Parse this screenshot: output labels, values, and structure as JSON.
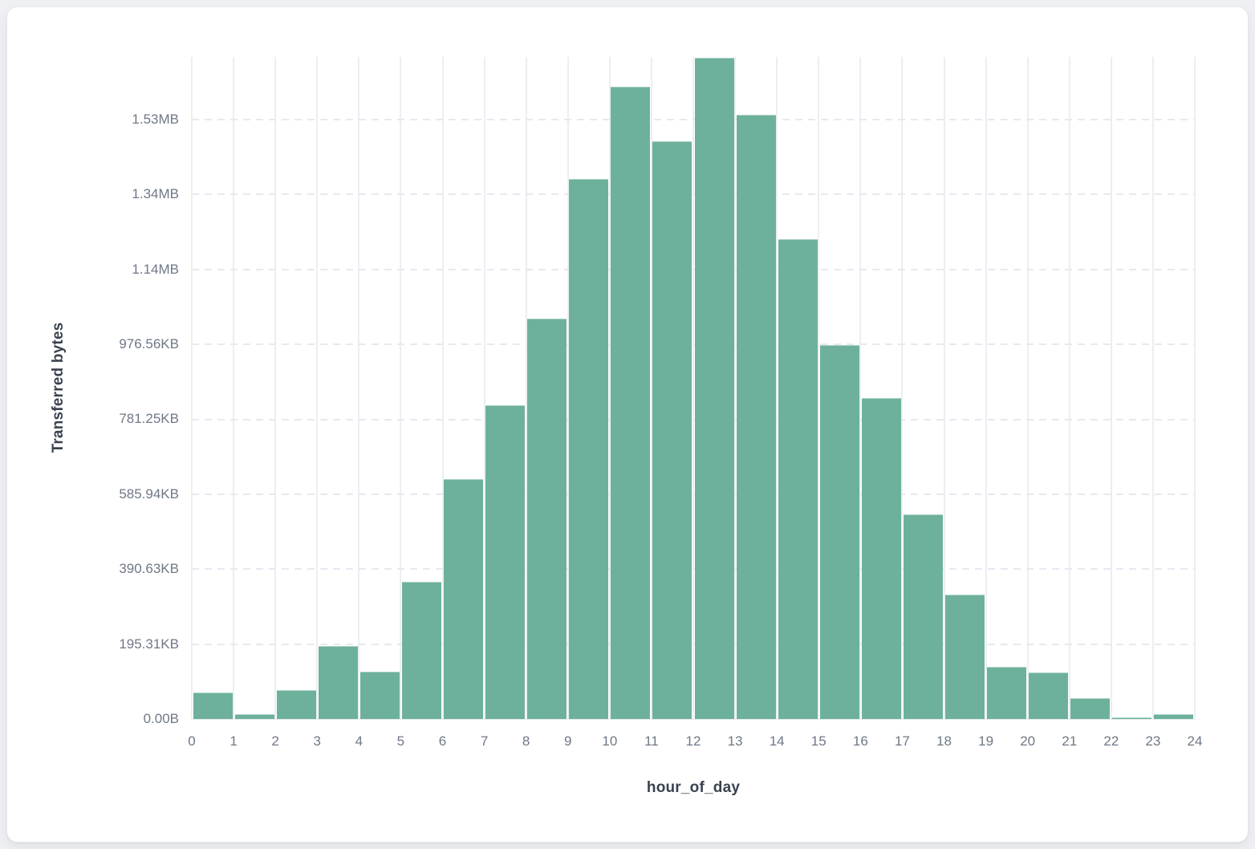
{
  "page": {
    "background_color": "#eef0f3",
    "card_background": "#ffffff",
    "card_border_color": "#e6e8ee"
  },
  "chart_data": {
    "type": "bar",
    "title": "",
    "xlabel": "hour_of_day",
    "ylabel": "Transferred bytes",
    "legend_position": "none",
    "grid": true,
    "bar_color": "#6db19c",
    "vertical_gridline_color": "#eceef3",
    "horizontal_gridline_color": "#e6e9ef",
    "tick_label_color": "#6f7887",
    "axis_title_color": "#3a4250",
    "xlim": [
      0,
      24
    ],
    "bin_width_hours": 1,
    "categories": [
      0,
      1,
      2,
      3,
      4,
      5,
      6,
      7,
      8,
      9,
      10,
      11,
      12,
      13,
      14,
      15,
      16,
      17,
      18,
      19,
      20,
      21,
      22,
      23
    ],
    "values_bytes": [
      70700,
      12900,
      77100,
      195000,
      126400,
      366300,
      640400,
      837500,
      1068800,
      1441500,
      1687800,
      1542200,
      1765000,
      1612900,
      1280900,
      998100,
      856800,
      546200,
      332000,
      139200,
      124200,
      55700,
      4300,
      12900
    ],
    "x_tick_labels": [
      "0",
      "1",
      "2",
      "3",
      "4",
      "5",
      "6",
      "7",
      "8",
      "9",
      "10",
      "11",
      "12",
      "13",
      "14",
      "15",
      "16",
      "17",
      "18",
      "19",
      "20",
      "21",
      "22",
      "23",
      "24"
    ],
    "y_ticks": [
      {
        "value_bytes": 0,
        "label": "0.00B"
      },
      {
        "value_bytes": 200000,
        "label": "195.31KB"
      },
      {
        "value_bytes": 400000,
        "label": "390.63KB"
      },
      {
        "value_bytes": 600000,
        "label": "585.94KB"
      },
      {
        "value_bytes": 800000,
        "label": "781.25KB"
      },
      {
        "value_bytes": 1000000,
        "label": "976.56KB"
      },
      {
        "value_bytes": 1200000,
        "label": "1.14MB"
      },
      {
        "value_bytes": 1400000,
        "label": "1.34MB"
      },
      {
        "value_bytes": 1600000,
        "label": "1.53MB"
      }
    ],
    "y_axis_max_bytes": 1767000
  }
}
